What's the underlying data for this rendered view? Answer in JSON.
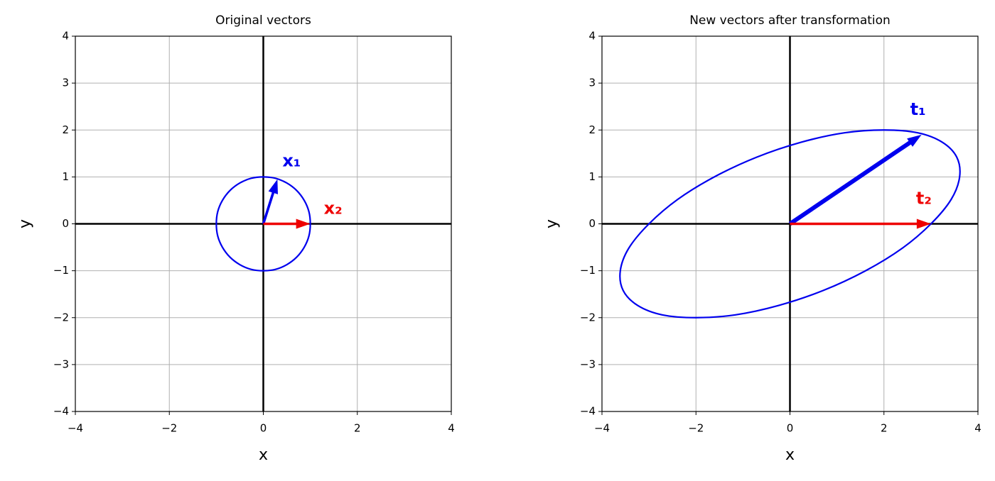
{
  "chart_data": [
    {
      "type": "vector",
      "title": "Original vectors",
      "xlabel": "x",
      "ylabel": "y",
      "xlim": [
        -4,
        4
      ],
      "ylim": [
        -4,
        4
      ],
      "xticks": [
        {
          "value": -4,
          "label": "−4"
        },
        {
          "value": -2,
          "label": "−2"
        },
        0,
        2,
        4
      ],
      "yticks": [
        {
          "value": -4,
          "label": "−4"
        },
        {
          "value": -3,
          "label": "−3"
        },
        {
          "value": -2,
          "label": "−2"
        },
        {
          "value": -1,
          "label": "−1"
        },
        0,
        1,
        2,
        3,
        4
      ],
      "grid": true,
      "curve": {
        "color": "#0000ee",
        "x": [
          1,
          0.97,
          0.87,
          0.71,
          0.5,
          0.26,
          0,
          -0.26,
          -0.5,
          -0.71,
          -0.87,
          -0.97,
          -1,
          -0.97,
          -0.87,
          -0.71,
          -0.5,
          -0.26,
          0,
          0.26,
          0.5,
          0.71,
          0.87,
          0.97
        ],
        "y": [
          0,
          0.26,
          0.5,
          0.71,
          0.87,
          0.97,
          1,
          0.97,
          0.87,
          0.71,
          0.5,
          0.26,
          0,
          -0.26,
          -0.5,
          -0.71,
          -0.87,
          -0.97,
          -1,
          -0.97,
          -0.87,
          -0.71,
          -0.5,
          -0.26
        ]
      },
      "vectors": [
        {
          "name": "x₁",
          "color": "#0000ee",
          "x": 0.3,
          "y": 0.95
        },
        {
          "name": "x₂",
          "color": "#ee0000",
          "x": 1,
          "y": 0
        }
      ]
    },
    {
      "type": "vector",
      "title": "New vectors after transformation",
      "xlabel": "x",
      "ylabel": "y",
      "xlim": [
        -4,
        4
      ],
      "ylim": [
        -4,
        4
      ],
      "xticks": [
        {
          "value": -4,
          "label": "−4"
        },
        {
          "value": -2,
          "label": "−2"
        },
        0,
        2,
        4
      ],
      "yticks": [
        {
          "value": -4,
          "label": "−4"
        },
        {
          "value": -3,
          "label": "−3"
        },
        {
          "value": -2,
          "label": "−2"
        },
        {
          "value": -1,
          "label": "−1"
        },
        0,
        1,
        2,
        3,
        4
      ],
      "grid": true,
      "curve": {
        "color": "#0000ee",
        "x": [
          3,
          3.43,
          3.61,
          3.55,
          3.24,
          2.72,
          2,
          1.16,
          0.24,
          -0.71,
          -1.61,
          -2.39,
          -3,
          -3.43,
          -3.61,
          -3.55,
          -3.24,
          -2.72,
          -2,
          -1.16,
          -0.24,
          0.71,
          1.61,
          2.39
        ],
        "y": [
          0,
          0.52,
          1,
          1.42,
          1.74,
          1.94,
          2,
          1.94,
          1.74,
          1.42,
          1,
          0.52,
          0,
          -0.52,
          -1,
          -1.42,
          -1.74,
          -1.94,
          -2,
          -1.94,
          -1.74,
          -1.42,
          -1,
          -0.52
        ]
      },
      "vectors": [
        {
          "name": "t₁",
          "color": "#0000ee",
          "x": 2.8,
          "y": 1.9
        },
        {
          "name": "t₂",
          "color": "#ee0000",
          "x": 3,
          "y": 0
        }
      ]
    }
  ]
}
